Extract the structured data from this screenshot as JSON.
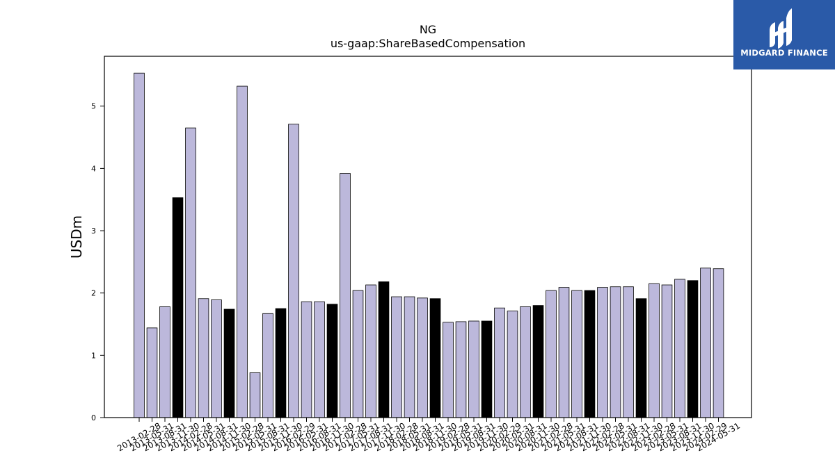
{
  "chart_data": {
    "type": "bar",
    "title": "NG",
    "subtitle": "us-gaap:ShareBasedCompensation",
    "xlabel": "",
    "ylabel": "USDm",
    "ylim": [
      0,
      5.8
    ],
    "yticks": [
      0,
      1,
      2,
      3,
      4,
      5
    ],
    "grid": false,
    "legend": "none",
    "colors": {
      "regular": "#bcb8db",
      "highlight": "#000000",
      "edge": "#000000"
    },
    "categories": [
      "2013-02-28",
      "2013-05-31",
      "2013-08-31",
      "2013-11-30",
      "2014-02-28",
      "2014-05-31",
      "2014-08-31",
      "2014-11-30",
      "2015-02-28",
      "2015-05-31",
      "2015-08-31",
      "2015-11-30",
      "2016-02-29",
      "2016-05-31",
      "2016-08-31",
      "2016-11-30",
      "2017-02-28",
      "2017-05-31",
      "2017-08-31",
      "2017-11-30",
      "2018-02-28",
      "2018-05-31",
      "2018-08-31",
      "2018-11-30",
      "2019-02-28",
      "2019-05-31",
      "2019-08-31",
      "2019-11-30",
      "2020-02-29",
      "2020-05-31",
      "2020-08-31",
      "2020-11-30",
      "2021-02-28",
      "2021-05-31",
      "2021-08-31",
      "2021-11-30",
      "2022-02-28",
      "2022-05-31",
      "2022-08-31",
      "2022-11-30",
      "2023-02-28",
      "2023-05-31",
      "2023-08-31",
      "2023-11-30",
      "2024-02-29",
      "2024-05-31"
    ],
    "values": [
      5.53,
      1.44,
      1.78,
      3.53,
      4.65,
      1.91,
      1.89,
      1.74,
      5.32,
      0.72,
      1.67,
      1.75,
      4.71,
      1.86,
      1.86,
      1.82,
      3.92,
      2.04,
      2.13,
      2.18,
      1.94,
      1.94,
      1.92,
      1.91,
      1.53,
      1.54,
      1.55,
      1.55,
      1.76,
      1.71,
      1.78,
      1.8,
      2.04,
      2.09,
      2.04,
      2.04,
      2.09,
      2.1,
      2.1,
      1.91,
      2.15,
      2.13,
      2.22,
      2.2,
      2.4,
      2.39
    ],
    "highlight": [
      false,
      false,
      false,
      true,
      false,
      false,
      false,
      true,
      false,
      false,
      false,
      true,
      false,
      false,
      false,
      true,
      false,
      false,
      false,
      true,
      false,
      false,
      false,
      true,
      false,
      false,
      false,
      true,
      false,
      false,
      false,
      true,
      false,
      false,
      false,
      true,
      false,
      false,
      false,
      true,
      false,
      false,
      false,
      true,
      false,
      false
    ]
  },
  "logo": {
    "text": "MIDGARD FINANCE",
    "icon": "midgard-logo-icon",
    "background": "#2a5aa8"
  }
}
